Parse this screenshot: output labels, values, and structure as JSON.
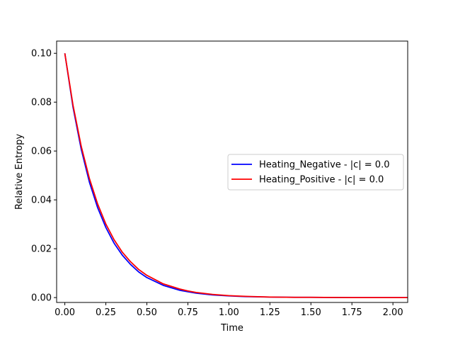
{
  "chart_data": {
    "type": "line",
    "title": "",
    "xlabel": "Time",
    "ylabel": "Relative Entropy",
    "xlim": [
      -0.05,
      2.09
    ],
    "ylim": [
      -0.002,
      0.105
    ],
    "x_ticks": [
      0.0,
      0.25,
      0.5,
      0.75,
      1.0,
      1.25,
      1.5,
      1.75,
      2.0
    ],
    "x_tick_labels": [
      "0.00",
      "0.25",
      "0.50",
      "0.75",
      "1.00",
      "1.25",
      "1.50",
      "1.75",
      "2.00"
    ],
    "y_ticks": [
      0.0,
      0.02,
      0.04,
      0.06,
      0.08,
      0.1
    ],
    "y_tick_labels": [
      "0.00",
      "0.02",
      "0.04",
      "0.06",
      "0.08",
      "0.10"
    ],
    "grid": false,
    "legend_position": "center-right",
    "series": [
      {
        "name": "Heating_Negative - |c| = 0.0",
        "color": "#0000ff",
        "x": [
          0.0,
          0.05,
          0.1,
          0.15,
          0.2,
          0.25,
          0.3,
          0.35,
          0.4,
          0.45,
          0.5,
          0.6,
          0.7,
          0.75,
          0.8,
          0.9,
          1.0,
          1.1,
          1.25,
          1.4,
          1.5,
          1.75,
          2.0,
          2.09
        ],
        "y": [
          0.1,
          0.0779,
          0.0607,
          0.0472,
          0.0368,
          0.0287,
          0.0223,
          0.0174,
          0.0136,
          0.0105,
          0.0082,
          0.005,
          0.003,
          0.0024,
          0.0018,
          0.0011,
          0.0007,
          0.0004,
          0.0002,
          0.0001,
          0.0001,
          0.0,
          0.0,
          0.0
        ]
      },
      {
        "name": "Heating_Positive - |c| = 0.0",
        "color": "#ff0000",
        "x": [
          0.0,
          0.05,
          0.1,
          0.15,
          0.2,
          0.25,
          0.3,
          0.35,
          0.4,
          0.45,
          0.5,
          0.6,
          0.7,
          0.75,
          0.8,
          0.9,
          1.0,
          1.1,
          1.25,
          1.4,
          1.5,
          1.75,
          2.0,
          2.09
        ],
        "y": [
          0.1,
          0.0787,
          0.0619,
          0.0487,
          0.0383,
          0.0301,
          0.0237,
          0.0186,
          0.0147,
          0.0115,
          0.0091,
          0.0056,
          0.0035,
          0.0027,
          0.0021,
          0.0013,
          0.0008,
          0.0005,
          0.0002,
          0.0001,
          0.0001,
          0.0,
          0.0,
          0.0
        ]
      }
    ]
  }
}
